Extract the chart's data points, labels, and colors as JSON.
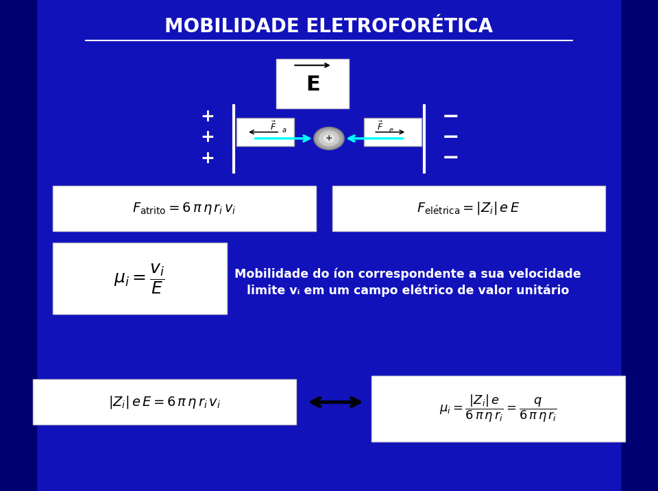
{
  "title": "MOBILIDADE ELETROFORÉTICA",
  "bg_color": "#0a0aaa",
  "box_color": "#f0f0f0",
  "text_color_white": "#ffffff",
  "text_color_dark": "#000000",
  "description_line1": "Mobilidade do íon correspondente a sua velocidade",
  "description_line2": "limite vᵢ em um campo elétrico de valor unitário"
}
